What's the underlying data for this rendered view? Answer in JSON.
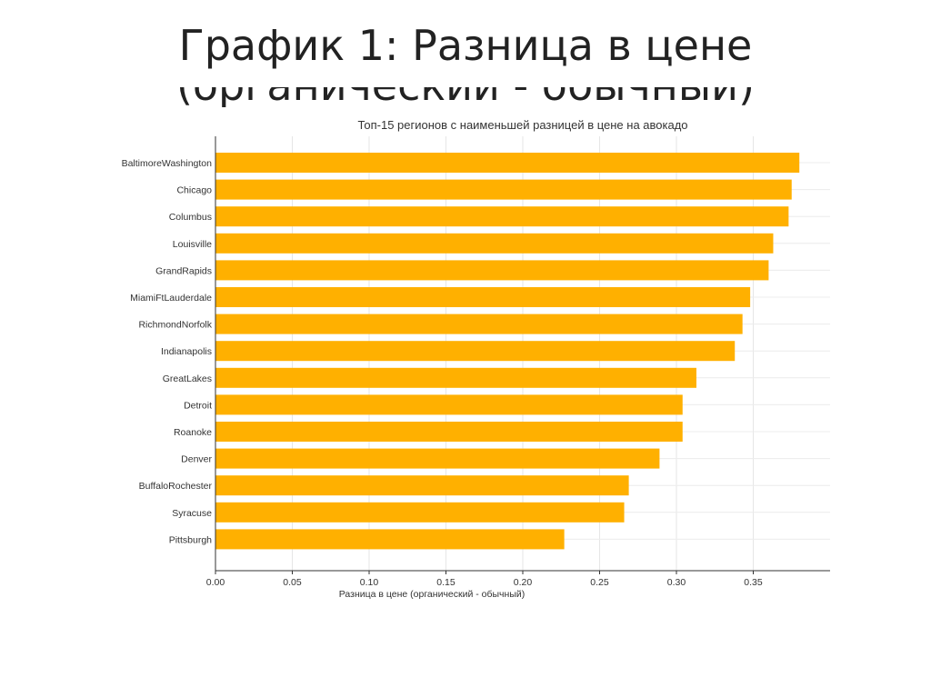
{
  "slide": {
    "title": "График 1: Разница в цене",
    "title_line2": "(органический - обычный)"
  },
  "chart_data": {
    "type": "bar",
    "orientation": "horizontal",
    "title": "Топ-15 регионов с наименьшей разницей в цене на авокадо",
    "xlabel": "Разница в цене (органический - обычный)",
    "ylabel": "",
    "xlim": [
      0,
      0.4
    ],
    "xticks": [
      "0.00",
      "0.05",
      "0.10",
      "0.15",
      "0.20",
      "0.25",
      "0.30",
      "0.35"
    ],
    "grid": true,
    "bar_color": "#FFB000",
    "categories": [
      "BaltimoreWashington",
      "Chicago",
      "Columbus",
      "Louisville",
      "GrandRapids",
      "MiamiFtLauderdale",
      "RichmondNorfolk",
      "Indianapolis",
      "GreatLakes",
      "Detroit",
      "Roanoke",
      "Denver",
      "BuffaloRochester",
      "Syracuse",
      "Pittsburgh"
    ],
    "values": [
      0.38,
      0.375,
      0.373,
      0.363,
      0.36,
      0.348,
      0.343,
      0.338,
      0.313,
      0.304,
      0.304,
      0.289,
      0.269,
      0.266,
      0.227
    ]
  }
}
